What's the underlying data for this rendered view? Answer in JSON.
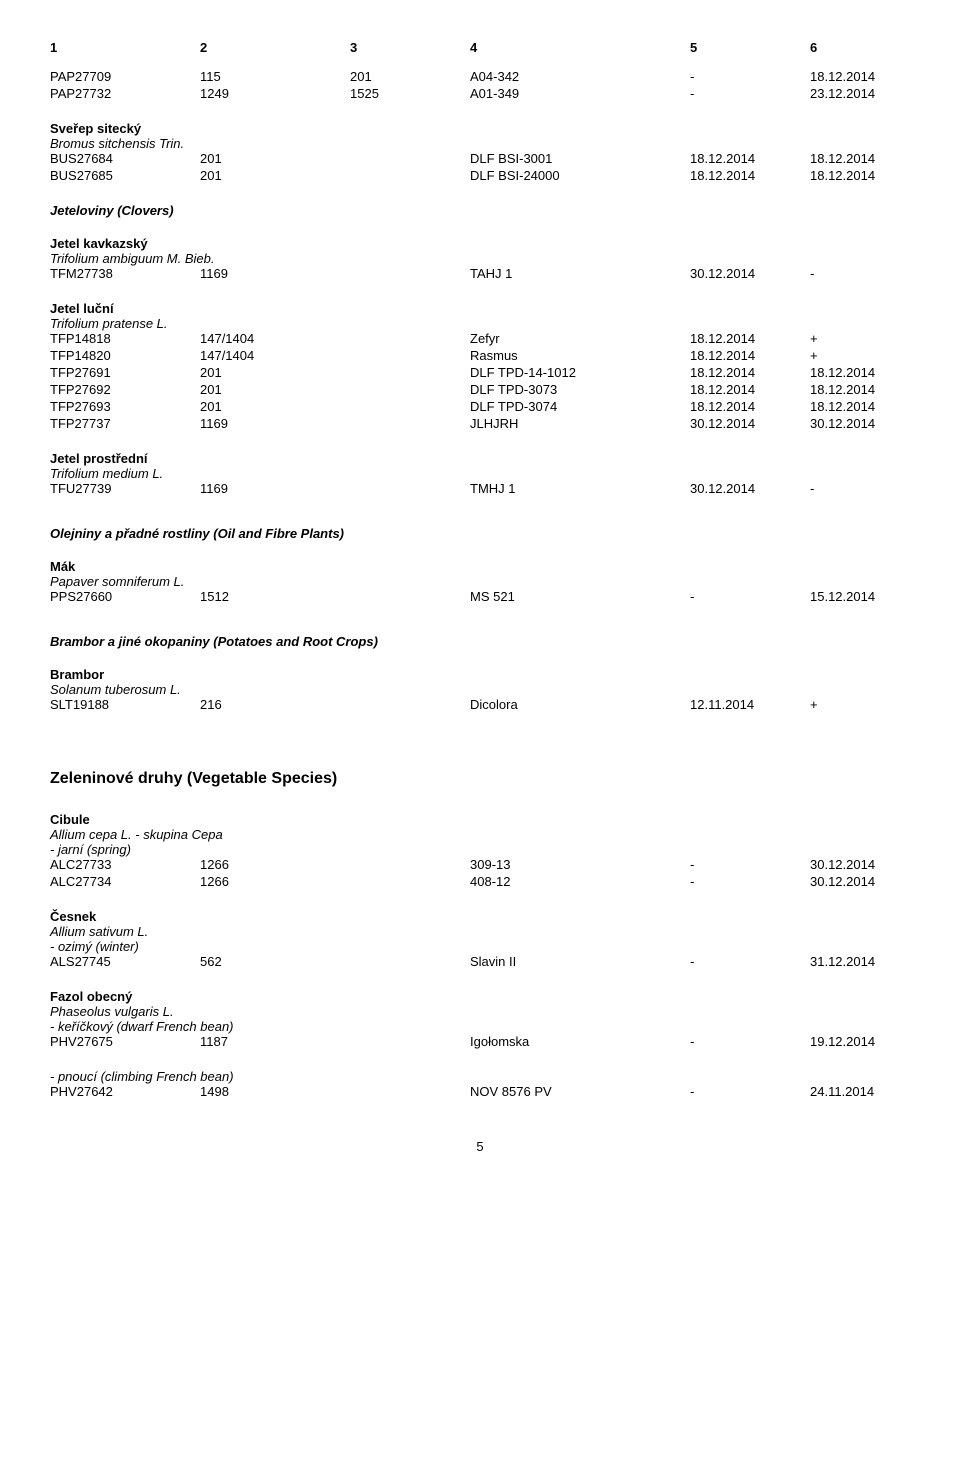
{
  "header": {
    "c1": "1",
    "c2": "2",
    "c3": "3",
    "c4": "4",
    "c5": "5",
    "c6": "6"
  },
  "pap_rows": [
    {
      "c1": "PAP27709",
      "c2": "115",
      "c3": "201",
      "c4": "A04-342",
      "c5": "-",
      "c6": "18.12.2014"
    },
    {
      "c1": "PAP27732",
      "c2": "1249",
      "c3": "1525",
      "c4": "A01-349",
      "c5": "-",
      "c6": "23.12.2014"
    }
  ],
  "sverep": {
    "title": "Sveřep sitecký",
    "latin": "Bromus sitchensis Trin."
  },
  "sverep_rows": [
    {
      "c1": "BUS27684",
      "c2": "201",
      "c4": "DLF BSI-3001",
      "c5": "18.12.2014",
      "c6": "18.12.2014"
    },
    {
      "c1": "BUS27685",
      "c2": "201",
      "c4": "DLF BSI-24000",
      "c5": "18.12.2014",
      "c6": "18.12.2014"
    }
  ],
  "jeteloviny": "Jeteloviny (Clovers)",
  "kavkaz": {
    "title": "Jetel kavkazský",
    "latin": "Trifolium ambiguum M. Bieb."
  },
  "kavkaz_rows": [
    {
      "c1": "TFM27738",
      "c2": "1169",
      "c4": "TAHJ 1",
      "c5": "30.12.2014",
      "c6": "-"
    }
  ],
  "lucni": {
    "title": "Jetel luční",
    "latin": "Trifolium pratense L."
  },
  "lucni_rows": [
    {
      "c1": "TFP14818",
      "c2": "147/1404",
      "c4": "Zefyr",
      "c5": "18.12.2014",
      "c6": "+"
    },
    {
      "c1": "TFP14820",
      "c2": "147/1404",
      "c4": "Rasmus",
      "c5": "18.12.2014",
      "c6": "+"
    },
    {
      "c1": "TFP27691",
      "c2": "201",
      "c4": "DLF TPD-14-1012",
      "c5": "18.12.2014",
      "c6": "18.12.2014"
    },
    {
      "c1": "TFP27692",
      "c2": "201",
      "c4": "DLF TPD-3073",
      "c5": "18.12.2014",
      "c6": "18.12.2014"
    },
    {
      "c1": "TFP27693",
      "c2": "201",
      "c4": "DLF TPD-3074",
      "c5": "18.12.2014",
      "c6": "18.12.2014"
    },
    {
      "c1": "TFP27737",
      "c2": "1169",
      "c4": "JLHJRH",
      "c5": "30.12.2014",
      "c6": "30.12.2014"
    }
  ],
  "prostredni": {
    "title": "Jetel prostřední",
    "latin": "Trifolium medium L."
  },
  "prostredni_rows": [
    {
      "c1": "TFU27739",
      "c2": "1169",
      "c4": "TMHJ 1",
      "c5": "30.12.2014",
      "c6": "-"
    }
  ],
  "olejniny": "Olejniny a přadné rostliny (Oil and Fibre Plants)",
  "mak": {
    "title": "Mák",
    "latin": "Papaver somniferum L."
  },
  "mak_rows": [
    {
      "c1": "PPS27660",
      "c2": "1512",
      "c4": "MS 521",
      "c5": "-",
      "c6": "15.12.2014"
    }
  ],
  "brambor_section": "Brambor a jiné okopaniny (Potatoes and Root Crops)",
  "brambor": {
    "title": "Brambor",
    "latin": "Solanum tuberosum L."
  },
  "brambor_rows": [
    {
      "c1": "SLT19188",
      "c2": "216",
      "c4": "Dicolora",
      "c5": "12.11.2014",
      "c6": "+"
    }
  ],
  "zeleninove": "Zeleninové druhy (Vegetable Species)",
  "cibule": {
    "title": "Cibule",
    "latin": "Allium cepa L. - skupina Cepa",
    "note": "- jarní (spring)"
  },
  "cibule_rows": [
    {
      "c1": "ALC27733",
      "c2": "1266",
      "c4": "309-13",
      "c5": "-",
      "c6": "30.12.2014"
    },
    {
      "c1": "ALC27734",
      "c2": "1266",
      "c4": "408-12",
      "c5": "-",
      "c6": "30.12.2014"
    }
  ],
  "cesnek": {
    "title": "Česnek",
    "latin": "Allium sativum L.",
    "note": "- ozimý (winter)"
  },
  "cesnek_rows": [
    {
      "c1": "ALS27745",
      "c2": "562",
      "c4": "Slavin II",
      "c5": "-",
      "c6": "31.12.2014"
    }
  ],
  "fazol": {
    "title": "Fazol obecný",
    "latin": "Phaseolus vulgaris L.",
    "note": "- keříčkový (dwarf French bean)"
  },
  "fazol_rows": [
    {
      "c1": "PHV27675",
      "c2": "1187",
      "c4": "Igołomska",
      "c5": "-",
      "c6": "19.12.2014"
    }
  ],
  "fazol2_note": "- pnoucí (climbing French bean)",
  "fazol2_rows": [
    {
      "c1": "PHV27642",
      "c2": "1498",
      "c4": "NOV 8576 PV",
      "c5": "-",
      "c6": "24.11.2014"
    }
  ],
  "page": "5"
}
